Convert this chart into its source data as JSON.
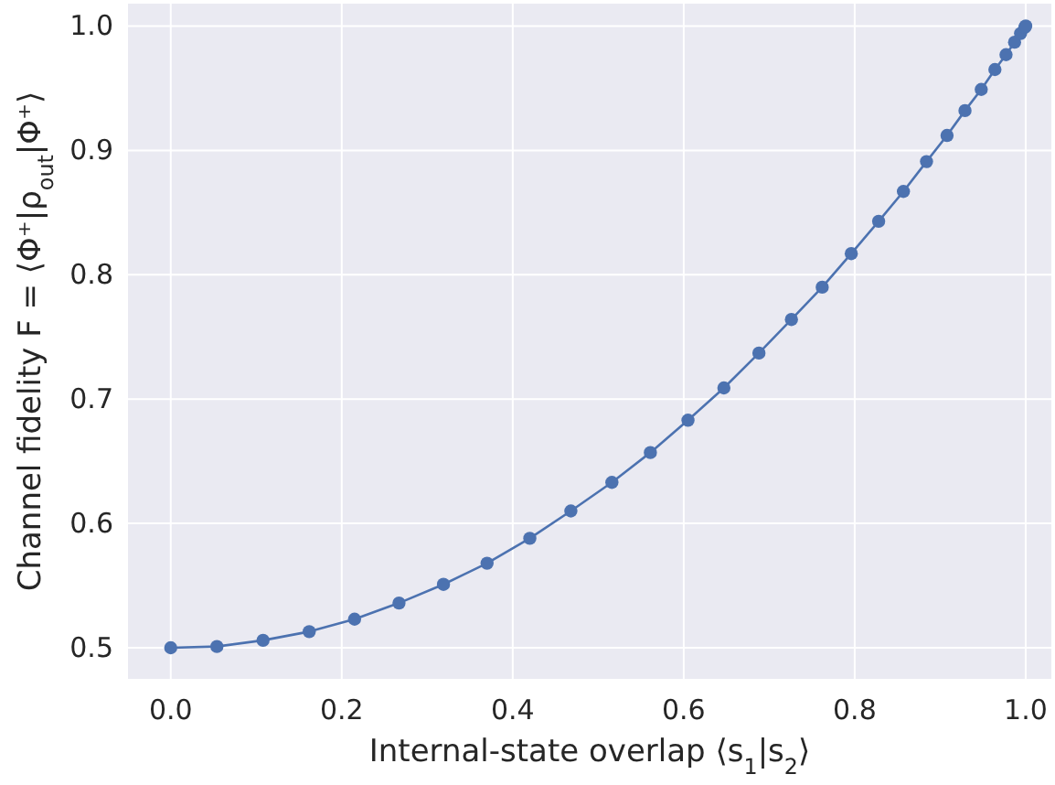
{
  "chart_data": {
    "type": "line",
    "xlabel": "Internal-state overlap ⟨s$_{1}$|s$_{2}$⟩",
    "ylabel": "Channel fidelity F = ⟨Φ⁺|ρ$_{out}$|Φ⁺⟩",
    "x": [
      0,
      0.054,
      0.108,
      0.162,
      0.215,
      0.267,
      0.319,
      0.37,
      0.42,
      0.468,
      0.516,
      0.561,
      0.605,
      0.647,
      0.688,
      0.726,
      0.762,
      0.796,
      0.828,
      0.857,
      0.884,
      0.908,
      0.929,
      0.948,
      0.964,
      0.977,
      0.987,
      0.994,
      0.999,
      1.0
    ],
    "series": [
      {
        "color": "#4c72b0",
        "values": [
          0.5,
          0.501,
          0.506,
          0.513,
          0.523,
          0.536,
          0.551,
          0.568,
          0.588,
          0.61,
          0.633,
          0.657,
          0.683,
          0.709,
          0.737,
          0.764,
          0.79,
          0.817,
          0.843,
          0.867,
          0.891,
          0.912,
          0.932,
          0.949,
          0.965,
          0.977,
          0.987,
          0.994,
          0.999,
          1.0
        ]
      }
    ],
    "xlim": [
      -0.05,
      1.03
    ],
    "ylim": [
      0.475,
      1.018
    ],
    "xticks": [
      {
        "value": 0,
        "label": "0.0"
      },
      0.2,
      0.4,
      0.6,
      0.8,
      {
        "value": 1,
        "label": "1.0"
      }
    ],
    "yticks": [
      0.5,
      0.6,
      0.7,
      0.8,
      0.9,
      {
        "value": 1,
        "label": "1.0"
      }
    ],
    "grid": true,
    "marker": "circle",
    "line_style": "solid"
  }
}
